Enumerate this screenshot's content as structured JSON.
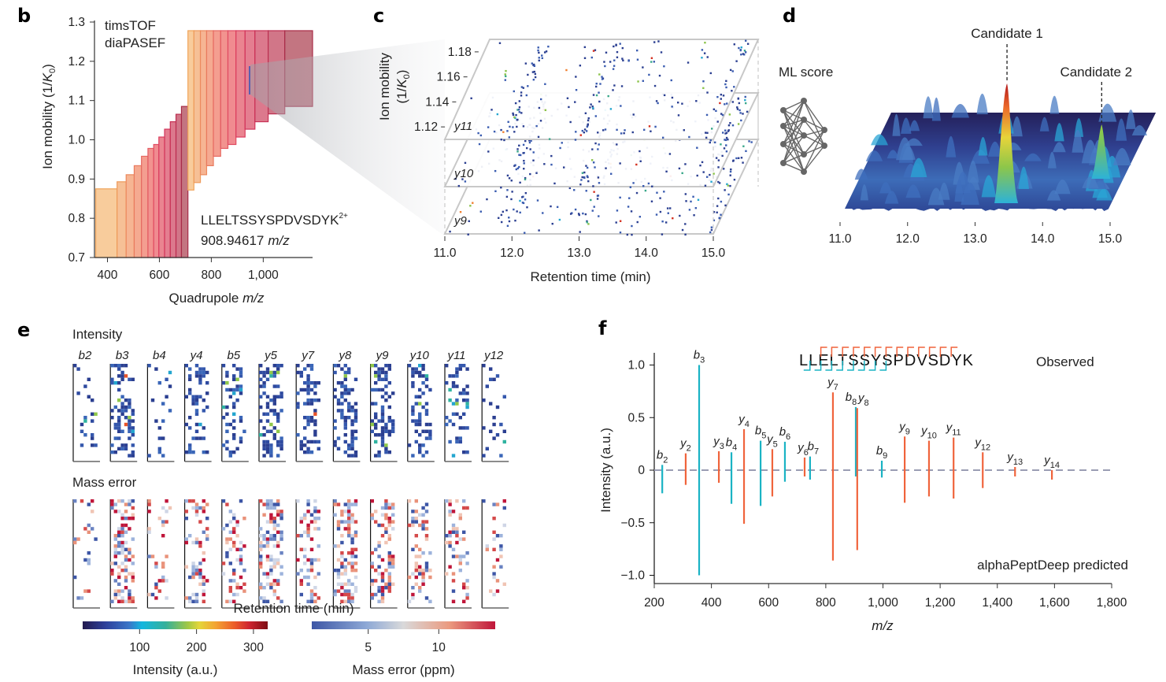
{
  "figure": {
    "panels": [
      "b",
      "c",
      "d",
      "e",
      "f"
    ]
  },
  "chart_data": [
    {
      "id": "b",
      "type": "bar",
      "panel_label": "b",
      "title_lines": [
        "timsTOF",
        "diaPASEF"
      ],
      "xlabel": "Quadrupole m/z",
      "xlabel_plain": "Quadrupole ",
      "xlabel_italic": "m/z",
      "ylabel": "Ion mobility (1/K0)",
      "xlim": [
        350,
        1190
      ],
      "ylim": [
        0.7,
        1.3
      ],
      "xticks": [
        400,
        600,
        800,
        1000
      ],
      "xtick_labels": [
        "400",
        "600",
        "800",
        "1,000"
      ],
      "yticks": [
        0.7,
        0.8,
        0.9,
        1.0,
        1.1,
        1.2,
        1.3
      ],
      "ytick_labels": [
        "0.7",
        "0.8",
        "0.9",
        "1.0",
        "1.1",
        "1.2",
        "1.3"
      ],
      "annotation_peptide": "LLELTSSYSPDVSDYK",
      "annotation_charge": "2+",
      "annotation_mz_value": "908.94617",
      "annotation_mz_unit": "m/z",
      "precursor_mz": 908.94617,
      "precursor_im_range": [
        1.12,
        1.19
      ],
      "windows_group1": [
        {
          "mz": [
            355,
            437
          ],
          "im": [
            0.7,
            0.875
          ]
        },
        {
          "mz": [
            437,
            472
          ],
          "im": [
            0.7,
            0.893
          ]
        },
        {
          "mz": [
            472,
            503
          ],
          "im": [
            0.7,
            0.911
          ]
        },
        {
          "mz": [
            503,
            531
          ],
          "im": [
            0.7,
            0.934
          ]
        },
        {
          "mz": [
            531,
            556
          ],
          "im": [
            0.7,
            0.958
          ]
        },
        {
          "mz": [
            556,
            578
          ],
          "im": [
            0.7,
            0.978
          ]
        },
        {
          "mz": [
            578,
            598
          ],
          "im": [
            0.7,
            0.988
          ]
        },
        {
          "mz": [
            598,
            620
          ],
          "im": [
            0.7,
            1.007
          ]
        },
        {
          "mz": [
            620,
            642
          ],
          "im": [
            0.7,
            1.027
          ]
        },
        {
          "mz": [
            642,
            664
          ],
          "im": [
            0.7,
            1.046
          ]
        },
        {
          "mz": [
            664,
            685
          ],
          "im": [
            0.7,
            1.065
          ]
        },
        {
          "mz": [
            685,
            710
          ],
          "im": [
            0.7,
            1.085
          ]
        }
      ],
      "windows_group2": [
        {
          "mz": [
            710,
            733
          ],
          "im": [
            0.872,
            1.278
          ]
        },
        {
          "mz": [
            733,
            758
          ],
          "im": [
            0.891,
            1.278
          ]
        },
        {
          "mz": [
            758,
            782
          ],
          "im": [
            0.911,
            1.278
          ]
        },
        {
          "mz": [
            782,
            808
          ],
          "im": [
            0.934,
            1.278
          ]
        },
        {
          "mz": [
            808,
            836
          ],
          "im": [
            0.958,
            1.278
          ]
        },
        {
          "mz": [
            836,
            864
          ],
          "im": [
            0.978,
            1.278
          ]
        },
        {
          "mz": [
            864,
            895
          ],
          "im": [
            0.988,
            1.278
          ]
        },
        {
          "mz": [
            895,
            930
          ],
          "im": [
            1.007,
            1.278
          ]
        },
        {
          "mz": [
            930,
            968
          ],
          "im": [
            1.027,
            1.278
          ]
        },
        {
          "mz": [
            968,
            1019
          ],
          "im": [
            1.046,
            1.278
          ]
        },
        {
          "mz": [
            1019,
            1083
          ],
          "im": [
            1.066,
            1.278
          ]
        },
        {
          "mz": [
            1083,
            1190
          ],
          "im": [
            1.085,
            1.278
          ]
        }
      ],
      "window_colors": [
        "#f8c997",
        "#f6bd90",
        "#f5b18d",
        "#f4a58b",
        "#f3998a",
        "#f18d89",
        "#ef858a",
        "#e97d8a",
        "#e3778a",
        "#da7287",
        "#cf6f82",
        "#c06e7a"
      ]
    },
    {
      "id": "c",
      "type": "scatter",
      "panel_label": "c",
      "xlabel": "Retention time (min)",
      "ylabel_line1": "Ion mobility",
      "ylabel_line2": "(1/K0)",
      "xlim": [
        11.0,
        15.0
      ],
      "xticks": [
        11.0,
        12.0,
        13.0,
        14.0,
        15.0
      ],
      "xtick_labels": [
        "11.0",
        "12.0",
        "13.0",
        "14.0",
        "15.0"
      ],
      "ylim": [
        1.11,
        1.19
      ],
      "yticks": [
        1.12,
        1.14,
        1.16,
        1.18
      ],
      "ytick_labels": [
        "1.12",
        "1.14",
        "1.16",
        "1.18"
      ],
      "layers": [
        "y11",
        "y10",
        "y9"
      ],
      "feature_rt_clusters": [
        11.9,
        13.0,
        14.9
      ]
    },
    {
      "id": "d",
      "type": "area",
      "panel_label": "d",
      "ml_label": "ML score",
      "xlim": [
        11.0,
        15.0
      ],
      "xticks": [
        11.0,
        12.0,
        13.0,
        14.0,
        15.0
      ],
      "xtick_labels": [
        "11.0",
        "12.0",
        "13.0",
        "14.0",
        "15.0"
      ],
      "candidates": [
        {
          "label": "Candidate 1",
          "rt": 13.0,
          "score": 1.0
        },
        {
          "label": "Candidate 2",
          "rt": 14.4,
          "score": 0.45
        }
      ]
    },
    {
      "id": "e",
      "type": "heatmap",
      "panel_label": "e",
      "row_titles": [
        "Intensity",
        "Mass error"
      ],
      "fragments": [
        "b2",
        "b3",
        "b4",
        "y4",
        "b5",
        "y5",
        "y7",
        "y8",
        "y9",
        "y10",
        "y11",
        "y12"
      ],
      "xlabel": "Retention time (min)",
      "colorbars": [
        {
          "label": "Intensity (a.u.)",
          "range": [
            0,
            325
          ],
          "ticks": [
            100,
            200,
            300
          ],
          "tick_labels": [
            "100",
            "200",
            "300"
          ],
          "colormap": "turbo"
        },
        {
          "label": "Mass error (ppm)",
          "range": [
            1,
            14
          ],
          "ticks": [
            5,
            10
          ],
          "tick_labels": [
            "5",
            "10"
          ],
          "colormap": "coolwarm"
        }
      ]
    },
    {
      "id": "f",
      "type": "bar",
      "panel_label": "f",
      "xlabel": "m/z",
      "ylabel": "Intensity (a.u.)",
      "xlim": [
        200,
        1800
      ],
      "ylim": [
        -1.1,
        1.1
      ],
      "xticks": [
        200,
        400,
        600,
        800,
        1000,
        1200,
        1400,
        1600,
        1800
      ],
      "xtick_labels": [
        "200",
        "400",
        "600",
        "800",
        "1,000",
        "1,200",
        "1,400",
        "1,600",
        "1,800"
      ],
      "yticks": [
        1.0,
        0.5,
        0,
        -0.5,
        -1.0
      ],
      "ytick_labels": [
        "1.0",
        "0.5",
        "0",
        "−0.5",
        "−1.0"
      ],
      "observed_label": "Observed",
      "predicted_label": "alphaPeptDeep predicted",
      "peptide": "LLELTSSYSPDVSDYK",
      "b_brackets_after_residue": [
        1,
        2,
        3,
        4,
        5,
        6,
        7,
        8
      ],
      "y_brackets_after_residue": [
        2,
        3,
        4,
        5,
        6,
        7,
        8,
        9,
        10,
        11,
        12,
        13,
        14
      ],
      "colors": {
        "b": "#1ab3c4",
        "y": "#f0643c",
        "baseline": "#9a9db3"
      },
      "peaks": [
        {
          "ion": "b",
          "n": "2",
          "mz": 228,
          "observed": 0.05,
          "predicted": -0.22
        },
        {
          "ion": "y",
          "n": "2",
          "mz": 310,
          "observed": 0.16,
          "predicted": -0.14
        },
        {
          "ion": "b",
          "n": "3",
          "mz": 357,
          "observed": 1.0,
          "predicted": -1.0
        },
        {
          "ion": "y",
          "n": "3",
          "mz": 426,
          "observed": 0.18,
          "predicted": -0.12
        },
        {
          "ion": "b",
          "n": "4",
          "mz": 470,
          "observed": 0.17,
          "predicted": -0.32
        },
        {
          "ion": "y",
          "n": "4",
          "mz": 514,
          "observed": 0.39,
          "predicted": -0.51
        },
        {
          "ion": "b",
          "n": "5",
          "mz": 572,
          "observed": 0.28,
          "predicted": -0.34
        },
        {
          "ion": "y",
          "n": "5",
          "mz": 613,
          "observed": 0.2,
          "predicted": -0.25
        },
        {
          "ion": "b",
          "n": "6",
          "mz": 657,
          "observed": 0.27,
          "predicted": -0.11
        },
        {
          "ion": "y",
          "n": "6",
          "mz": 726,
          "observed": 0.12,
          "predicted": -0.06
        },
        {
          "ion": "b",
          "n": "7",
          "mz": 745,
          "observed": 0.13,
          "predicted": -0.09
        },
        {
          "ion": "y",
          "n": "7",
          "mz": 825,
          "observed": 0.74,
          "predicted": -0.86
        },
        {
          "ion": "b",
          "n": "8",
          "mz": 905,
          "observed": 0.6,
          "predicted": -0.06
        },
        {
          "ion": "y",
          "n": "8",
          "mz": 910,
          "observed": 0.59,
          "predicted": -0.76
        },
        {
          "ion": "b",
          "n": "9",
          "mz": 996,
          "observed": 0.09,
          "predicted": -0.07
        },
        {
          "ion": "y",
          "n": "9",
          "mz": 1076,
          "observed": 0.32,
          "predicted": -0.31
        },
        {
          "ion": "y",
          "n": "10",
          "mz": 1161,
          "observed": 0.28,
          "predicted": -0.25
        },
        {
          "ion": "y",
          "n": "11",
          "mz": 1247,
          "observed": 0.31,
          "predicted": -0.27
        },
        {
          "ion": "y",
          "n": "12",
          "mz": 1349,
          "observed": 0.17,
          "predicted": -0.17
        },
        {
          "ion": "y",
          "n": "13",
          "mz": 1462,
          "observed": 0.03,
          "predicted": -0.06
        },
        {
          "ion": "y",
          "n": "14",
          "mz": 1591,
          "observed": 0.0,
          "predicted": -0.09
        }
      ]
    }
  ]
}
